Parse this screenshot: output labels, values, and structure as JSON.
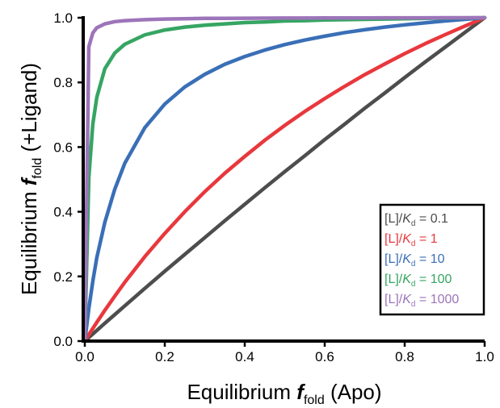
{
  "chart_data": {
    "type": "line",
    "title": "",
    "xlabel": {
      "prefix": "Equilibrium ",
      "italic": "f",
      "subscript": "fold",
      "suffix": " (Apo)"
    },
    "ylabel": {
      "prefix": "Equilibrium ",
      "italic": "f",
      "subscript": "fold",
      "suffix": " (+Ligand)"
    },
    "xlim": [
      0,
      1
    ],
    "ylim": [
      0,
      1
    ],
    "xticks": [
      "0.0",
      "0.2",
      "0.4",
      "0.6",
      "0.8",
      "1.0"
    ],
    "yticks": [
      "0.0",
      "0.2",
      "0.4",
      "0.6",
      "0.8",
      "1.0"
    ],
    "grid": false,
    "legend_position": "bottom-right",
    "x": [
      0,
      0.01,
      0.02,
      0.03,
      0.05,
      0.075,
      0.1,
      0.15,
      0.2,
      0.25,
      0.3,
      0.35,
      0.4,
      0.45,
      0.5,
      0.55,
      0.6,
      0.65,
      0.7,
      0.75,
      0.8,
      0.85,
      0.9,
      0.95,
      1.0
    ],
    "series": [
      {
        "legend_prefix": "[L]/",
        "legend_k": "K",
        "legend_sub": "d",
        "legend_value": " = 0.1",
        "color": "#4d4d4d",
        "values": [
          0,
          0.011,
          0.022,
          0.033,
          0.055,
          0.082,
          0.109,
          0.163,
          0.216,
          0.268,
          0.32,
          0.372,
          0.423,
          0.474,
          0.524,
          0.573,
          0.623,
          0.671,
          0.72,
          0.767,
          0.815,
          0.862,
          0.908,
          0.954,
          1.0
        ]
      },
      {
        "legend_prefix": "[L]/",
        "legend_k": "K",
        "legend_sub": "d",
        "legend_value": " = 1",
        "color": "#e8383d",
        "values": [
          0,
          0.02,
          0.039,
          0.058,
          0.095,
          0.139,
          0.182,
          0.261,
          0.333,
          0.4,
          0.462,
          0.519,
          0.571,
          0.621,
          0.667,
          0.71,
          0.75,
          0.788,
          0.824,
          0.857,
          0.889,
          0.919,
          0.947,
          0.974,
          1.0
        ]
      },
      {
        "legend_prefix": "[L]/",
        "legend_k": "K",
        "legend_sub": "d",
        "legend_value": " = 10",
        "color": "#3a6fb7",
        "values": [
          0,
          0.1,
          0.185,
          0.258,
          0.367,
          0.47,
          0.55,
          0.66,
          0.733,
          0.786,
          0.825,
          0.856,
          0.88,
          0.9,
          0.917,
          0.931,
          0.943,
          0.954,
          0.963,
          0.971,
          0.978,
          0.984,
          0.99,
          0.995,
          1.0
        ]
      },
      {
        "legend_prefix": "[L]/",
        "legend_k": "K",
        "legend_sub": "d",
        "legend_value": " = 100",
        "color": "#36a563",
        "values": [
          0,
          0.505,
          0.671,
          0.754,
          0.842,
          0.891,
          0.918,
          0.947,
          0.962,
          0.971,
          0.977,
          0.981,
          0.985,
          0.987,
          0.99,
          0.991,
          0.993,
          0.994,
          0.995,
          0.996,
          0.997,
          0.998,
          0.999,
          0.9995,
          1.0
        ]
      },
      {
        "legend_prefix": "[L]/",
        "legend_k": "K",
        "legend_sub": "d",
        "legend_value": " = 1000",
        "color": "#9d75ba",
        "values": [
          0,
          0.91,
          0.953,
          0.969,
          0.981,
          0.988,
          0.991,
          0.994,
          0.996,
          0.997,
          0.998,
          0.998,
          0.9985,
          0.9988,
          0.999,
          0.9992,
          0.9993,
          0.9994,
          0.9995,
          0.9996,
          0.9997,
          0.9998,
          0.9999,
          0.99995,
          1.0
        ]
      }
    ]
  }
}
